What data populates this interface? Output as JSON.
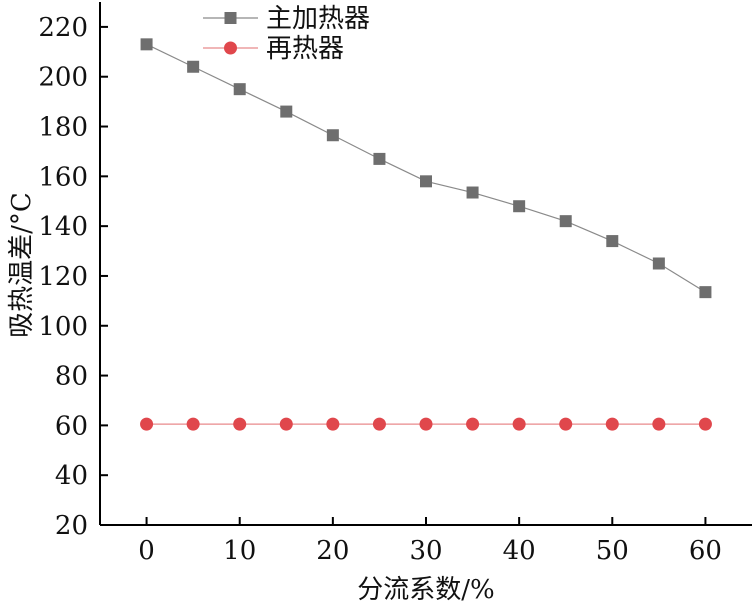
{
  "chart_data": {
    "type": "line",
    "title": "",
    "xlabel": "分流系数/%",
    "ylabel": "吸热温差/°C",
    "xlim": [
      -5,
      65
    ],
    "ylim": [
      20,
      230
    ],
    "xticks": [
      0,
      10,
      20,
      30,
      40,
      50,
      60
    ],
    "yticks": [
      20,
      40,
      60,
      80,
      100,
      120,
      140,
      160,
      180,
      200,
      220
    ],
    "x": [
      0,
      5,
      10,
      15,
      20,
      25,
      30,
      35,
      40,
      45,
      50,
      55,
      60
    ],
    "series": [
      {
        "name": "主加热器",
        "marker": "square",
        "color": "#6e6e6e",
        "values": [
          213,
          204,
          195,
          186,
          176.5,
          167,
          158,
          153.5,
          148,
          142,
          134,
          125,
          113.5
        ]
      },
      {
        "name": "再热器",
        "marker": "circle",
        "color": "#e0474c",
        "values": [
          60.5,
          60.5,
          60.5,
          60.5,
          60.5,
          60.5,
          60.5,
          60.5,
          60.5,
          60.5,
          60.5,
          60.5,
          60.5
        ]
      }
    ],
    "legend": "top-left",
    "grid": false
  }
}
